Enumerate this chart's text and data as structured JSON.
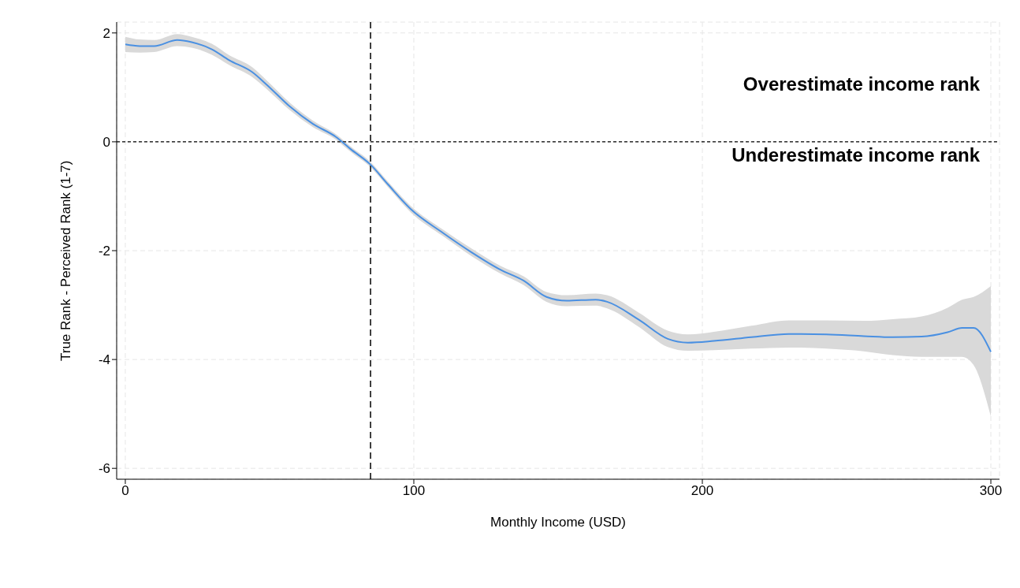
{
  "chart_data": {
    "type": "line",
    "xlabel": "Monthly Income (USD)",
    "ylabel": "True Rank - Perceived Rank (1-7)",
    "xlim": [
      -3,
      303
    ],
    "xticks": [
      0,
      100,
      200,
      300
    ],
    "ylim": [
      -6.2,
      2.2
    ],
    "yticks": [
      -6,
      -4,
      -2,
      0,
      2
    ],
    "grid": true,
    "marker": "none",
    "line_style": "solid",
    "series": [
      {
        "color": "#4a90e2",
        "x": [
          0,
          5,
          10,
          18,
          23,
          30,
          36,
          44,
          49,
          57,
          65,
          73,
          78,
          85,
          91,
          99,
          110,
          120,
          130,
          138,
          146,
          153,
          163,
          167,
          178,
          188,
          195,
          204,
          217,
          230,
          243,
          256,
          266,
          276,
          285,
          290,
          294,
          300
        ],
        "values": [
          1.79,
          1.76,
          1.76,
          1.87,
          1.83,
          1.7,
          1.5,
          1.28,
          1.05,
          0.65,
          0.33,
          0.09,
          -0.13,
          -0.42,
          -0.78,
          -1.24,
          -1.67,
          -2.03,
          -2.35,
          -2.55,
          -2.85,
          -2.92,
          -2.9,
          -2.94,
          -3.27,
          -3.62,
          -3.69,
          -3.66,
          -3.59,
          -3.53,
          -3.54,
          -3.57,
          -3.59,
          -3.58,
          -3.5,
          -3.42,
          -3.42,
          -3.86
        ],
        "lower": [
          1.65,
          1.64,
          1.65,
          1.76,
          1.73,
          1.6,
          1.41,
          1.19,
          0.97,
          0.58,
          0.27,
          0.04,
          -0.18,
          -0.47,
          -0.83,
          -1.3,
          -1.73,
          -2.1,
          -2.42,
          -2.63,
          -2.94,
          -3.02,
          -3.01,
          -3.06,
          -3.4,
          -3.77,
          -3.84,
          -3.83,
          -3.8,
          -3.78,
          -3.8,
          -3.85,
          -3.92,
          -3.95,
          -3.95,
          -3.95,
          -4.1,
          -5.05
        ],
        "upper": [
          1.93,
          1.88,
          1.87,
          1.98,
          1.93,
          1.8,
          1.59,
          1.37,
          1.13,
          0.72,
          0.39,
          0.14,
          -0.08,
          -0.37,
          -0.73,
          -1.18,
          -1.61,
          -1.96,
          -2.28,
          -2.47,
          -2.76,
          -2.82,
          -2.79,
          -2.82,
          -3.14,
          -3.47,
          -3.54,
          -3.49,
          -3.38,
          -3.28,
          -3.28,
          -3.29,
          -3.26,
          -3.21,
          -3.05,
          -2.9,
          -2.85,
          -2.65
        ]
      }
    ],
    "ref_lines": [
      {
        "axis": "x",
        "value": 85,
        "color": "#000000",
        "line_style": "dashed"
      },
      {
        "axis": "y",
        "value": 0,
        "color": "#000000",
        "line_style": "dotted"
      }
    ],
    "annotations": [
      "Overestimate income rank",
      "Underestimate income rank"
    ]
  }
}
